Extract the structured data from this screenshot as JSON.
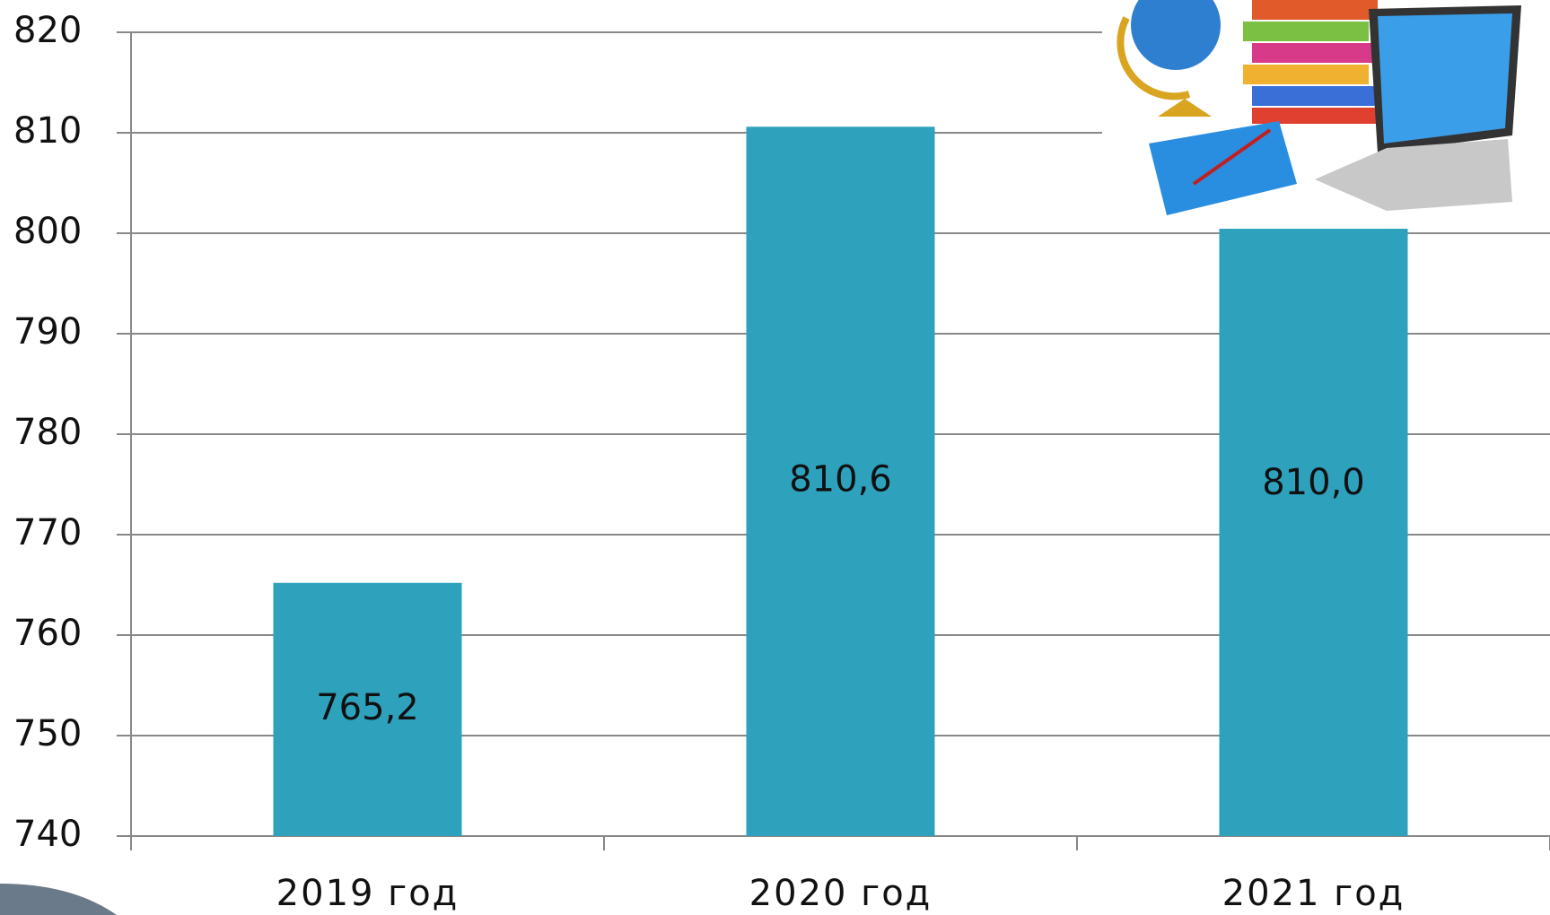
{
  "chart_data": {
    "type": "bar",
    "categories": [
      "2019 год",
      "2020 год",
      "2021 год"
    ],
    "values": [
      765.2,
      810.6,
      810.0
    ],
    "value_labels": [
      "765,2",
      "810,6",
      "810,0"
    ],
    "color": "#2ea1bd",
    "ylim": [
      740,
      820
    ],
    "yticks": [
      740,
      750,
      760,
      770,
      780,
      790,
      800,
      810,
      820
    ],
    "grid": true
  }
}
